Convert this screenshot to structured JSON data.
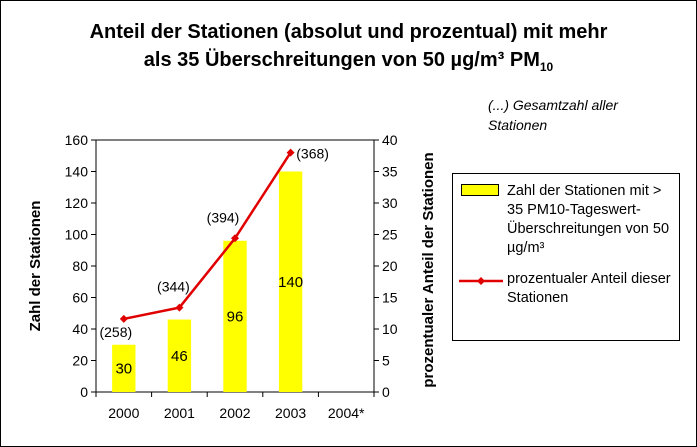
{
  "title_line1": "Anteil der Stationen (absolut und prozentual) mit mehr",
  "title_line2": "als 35 Überschreitungen von 50 µg/m³ PM",
  "title_sub": "10",
  "note": "(...) Gesamtzahl aller Stationen",
  "legend": {
    "bar_label": "Zahl der Stationen mit > 35 PM10-Tageswert-Überschreitungen von 50 µg/m³",
    "line_label": "prozentualer Anteil dieser Stationen"
  },
  "colors": {
    "bar": "#ffff00",
    "line": "#e00000"
  },
  "chart_data": {
    "type": "bar",
    "categories": [
      "2000",
      "2001",
      "2002",
      "2003",
      "2004*"
    ],
    "ylabel": "Zahl der Stationen",
    "y2label": "prozentualer Anteil der Stationen",
    "ylim": [
      0,
      160
    ],
    "yticks": [
      0,
      20,
      40,
      60,
      80,
      100,
      120,
      140,
      160
    ],
    "y2lim": [
      0,
      40
    ],
    "y2ticks": [
      0,
      5,
      10,
      15,
      20,
      25,
      30,
      35,
      40
    ],
    "series": [
      {
        "name": "Zahl der Stationen mit > 35 PM10-Tageswert-Überschreitungen von 50 µg/m³",
        "type": "bar",
        "axis": "left",
        "values": [
          30,
          46,
          96,
          140,
          null
        ],
        "labels": [
          "30",
          "46",
          "96",
          "140",
          ""
        ]
      },
      {
        "name": "prozentualer Anteil dieser Stationen",
        "type": "line",
        "axis": "right",
        "values": [
          11.6,
          13.4,
          24.4,
          38.0,
          null
        ]
      }
    ],
    "totals_labels": [
      "(258)",
      "(344)",
      "(394)",
      "(368)",
      ""
    ]
  }
}
